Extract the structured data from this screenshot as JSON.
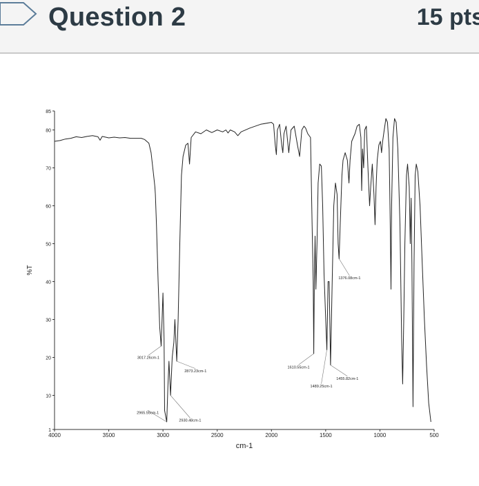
{
  "question": {
    "title": "Question 2",
    "points": "15 pts"
  },
  "colors": {
    "header_bg": "#f4f4f4",
    "title_text": "#2d3b45",
    "flag_stroke": "#5b7c99",
    "trace": "#222222"
  },
  "chart_data": {
    "type": "line",
    "title": "",
    "xlabel": "cm-1",
    "ylabel": "%T",
    "xlim": [
      4000,
      500
    ],
    "ylim": [
      1,
      85
    ],
    "x_ticks": [
      4000,
      3500,
      3000,
      2500,
      2000,
      1500,
      1000,
      500
    ],
    "y_ticks": [
      1,
      10,
      20,
      30,
      40,
      50,
      60,
      70,
      80,
      85
    ],
    "grid": false,
    "series": [
      {
        "points": [
          [
            4000,
            77
          ],
          [
            3950,
            77.2
          ],
          [
            3900,
            77.6
          ],
          [
            3850,
            77.8
          ],
          [
            3800,
            78.2
          ],
          [
            3750,
            78.0
          ],
          [
            3700,
            78.3
          ],
          [
            3650,
            78.5
          ],
          [
            3600,
            78.2
          ],
          [
            3580,
            77.3
          ],
          [
            3560,
            78.3
          ],
          [
            3500,
            77.9
          ],
          [
            3450,
            78.1
          ],
          [
            3400,
            77.9
          ],
          [
            3350,
            78.0
          ],
          [
            3300,
            77.8
          ],
          [
            3200,
            77.8
          ],
          [
            3170,
            77.5
          ],
          [
            3130,
            76.5
          ],
          [
            3110,
            74
          ],
          [
            3090,
            69
          ],
          [
            3075,
            65
          ],
          [
            3070,
            63
          ],
          [
            3060,
            55
          ],
          [
            3045,
            40
          ],
          [
            3030,
            28
          ],
          [
            3017,
            23
          ],
          [
            3000,
            37
          ],
          [
            2990,
            25
          ],
          [
            2985,
            6
          ],
          [
            2965,
            3
          ],
          [
            2955,
            12
          ],
          [
            2945,
            19
          ],
          [
            2930,
            10
          ],
          [
            2915,
            20
          ],
          [
            2900,
            24
          ],
          [
            2890,
            30
          ],
          [
            2873,
            19
          ],
          [
            2860,
            30
          ],
          [
            2845,
            50
          ],
          [
            2830,
            68
          ],
          [
            2815,
            73
          ],
          [
            2790,
            76
          ],
          [
            2770,
            76.5
          ],
          [
            2755,
            71
          ],
          [
            2740,
            78
          ],
          [
            2700,
            79.5
          ],
          [
            2650,
            79
          ],
          [
            2600,
            80
          ],
          [
            2550,
            79.3
          ],
          [
            2500,
            80
          ],
          [
            2450,
            79.5
          ],
          [
            2420,
            80
          ],
          [
            2400,
            79.2
          ],
          [
            2380,
            80
          ],
          [
            2340,
            79.5
          ],
          [
            2310,
            78.5
          ],
          [
            2280,
            79.5
          ],
          [
            2200,
            80.5
          ],
          [
            2100,
            81.5
          ],
          [
            2000,
            82
          ],
          [
            1980,
            81.5
          ],
          [
            1965,
            76
          ],
          [
            1955,
            73.5
          ],
          [
            1945,
            80
          ],
          [
            1925,
            81.5
          ],
          [
            1905,
            76
          ],
          [
            1895,
            74
          ],
          [
            1885,
            79
          ],
          [
            1865,
            81
          ],
          [
            1840,
            74
          ],
          [
            1820,
            80
          ],
          [
            1790,
            81
          ],
          [
            1760,
            76
          ],
          [
            1740,
            73
          ],
          [
            1720,
            80
          ],
          [
            1700,
            81
          ],
          [
            1685,
            80.5
          ],
          [
            1665,
            79
          ],
          [
            1640,
            78
          ],
          [
            1625,
            55
          ],
          [
            1615,
            40
          ],
          [
            1610,
            21
          ],
          [
            1605,
            40
          ],
          [
            1598,
            52
          ],
          [
            1590,
            38
          ],
          [
            1580,
            50
          ],
          [
            1570,
            66
          ],
          [
            1555,
            71
          ],
          [
            1540,
            70.5
          ],
          [
            1528,
            60
          ],
          [
            1515,
            42
          ],
          [
            1500,
            30
          ],
          [
            1489,
            22
          ],
          [
            1478,
            40
          ],
          [
            1468,
            40
          ],
          [
            1462,
            30
          ],
          [
            1455,
            18
          ],
          [
            1440,
            40
          ],
          [
            1425,
            60
          ],
          [
            1410,
            66
          ],
          [
            1395,
            63
          ],
          [
            1385,
            50
          ],
          [
            1376,
            46
          ],
          [
            1366,
            55
          ],
          [
            1350,
            68
          ],
          [
            1340,
            72
          ],
          [
            1320,
            74
          ],
          [
            1300,
            72
          ],
          [
            1285,
            66
          ],
          [
            1275,
            72
          ],
          [
            1260,
            77
          ],
          [
            1245,
            78
          ],
          [
            1230,
            79
          ],
          [
            1210,
            81
          ],
          [
            1190,
            81.5
          ],
          [
            1175,
            78
          ],
          [
            1168,
            64
          ],
          [
            1160,
            75
          ],
          [
            1150,
            70
          ],
          [
            1140,
            80
          ],
          [
            1125,
            81
          ],
          [
            1110,
            70
          ],
          [
            1095,
            60
          ],
          [
            1085,
            65
          ],
          [
            1070,
            71
          ],
          [
            1055,
            63
          ],
          [
            1045,
            55
          ],
          [
            1035,
            65
          ],
          [
            1025,
            72
          ],
          [
            1010,
            76
          ],
          [
            995,
            77
          ],
          [
            985,
            74
          ],
          [
            975,
            77
          ],
          [
            960,
            80
          ],
          [
            945,
            83
          ],
          [
            930,
            82
          ],
          [
            915,
            75
          ],
          [
            905,
            55
          ],
          [
            898,
            38
          ],
          [
            892,
            60
          ],
          [
            880,
            78
          ],
          [
            865,
            83
          ],
          [
            850,
            82
          ],
          [
            835,
            75
          ],
          [
            815,
            55
          ],
          [
            800,
            25
          ],
          [
            790,
            13
          ],
          [
            780,
            30
          ],
          [
            770,
            50
          ],
          [
            755,
            68
          ],
          [
            745,
            71
          ],
          [
            730,
            65
          ],
          [
            720,
            50
          ],
          [
            712,
            62
          ],
          [
            705,
            45
          ],
          [
            695,
            7
          ],
          [
            685,
            45
          ],
          [
            675,
            68
          ],
          [
            665,
            71
          ],
          [
            650,
            69
          ],
          [
            630,
            60
          ],
          [
            610,
            45
          ],
          [
            590,
            30
          ],
          [
            570,
            18
          ],
          [
            550,
            8
          ],
          [
            530,
            3
          ]
        ]
      }
    ],
    "annotations": [
      {
        "text": "3017.26cm-1",
        "x": 3017.26,
        "y": 23,
        "label_x": 3135,
        "label_y": 20
      },
      {
        "text": "2873.23cm-1",
        "x": 2873.23,
        "y": 19,
        "label_x": 2700,
        "label_y": 16.5
      },
      {
        "text": "2965.55cm-1",
        "x": 2965.55,
        "y": 3,
        "label_x": 3140,
        "label_y": 5.5
      },
      {
        "text": "2930.48cm-1",
        "x": 2930.48,
        "y": 10,
        "label_x": 2750,
        "label_y": 3.5
      },
      {
        "text": "1610.55cm-1",
        "x": 1610.55,
        "y": 21,
        "label_x": 1750,
        "label_y": 17.5
      },
      {
        "text": "1489.25cm-1",
        "x": 1489.25,
        "y": 22,
        "label_x": 1540,
        "label_y": 12.5
      },
      {
        "text": "1455.82cm-1",
        "x": 1455.82,
        "y": 18,
        "label_x": 1300,
        "label_y": 14.5
      },
      {
        "text": "1376.08cm-1",
        "x": 1376.08,
        "y": 46,
        "label_x": 1280,
        "label_y": 41
      }
    ]
  }
}
